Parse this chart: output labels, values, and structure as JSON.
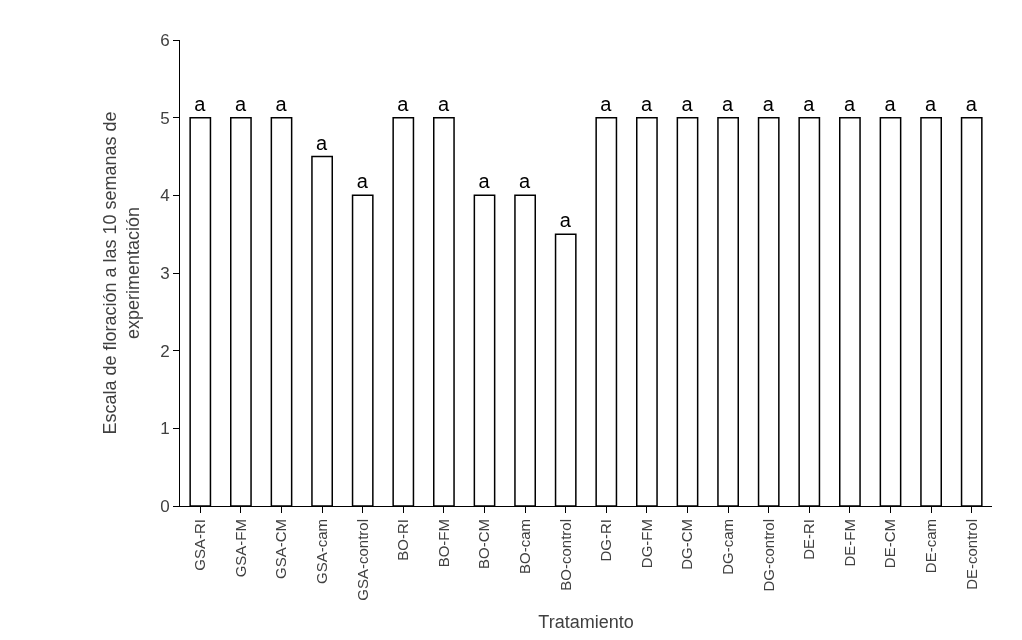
{
  "chart_data": {
    "type": "bar",
    "xlabel": "Tratamiento",
    "ylabel": "Escala de floración a las 10 semanas de experimentación",
    "categories": [
      "GSA-RI",
      "GSA-FM",
      "GSA-CM",
      "GSA-cam",
      "GSA-control",
      "BO-RI",
      "BO-FM",
      "BO-CM",
      "BO-cam",
      "BO-control",
      "DG-RI",
      "DG-FM",
      "DG-CM",
      "DG-cam",
      "DG-control",
      "DE-RI",
      "DE-FM",
      "DE-CM",
      "DE-cam",
      "DE-control"
    ],
    "values": [
      5,
      5,
      5,
      4.5,
      4,
      5,
      5,
      4,
      4,
      3.5,
      5,
      5,
      5,
      5,
      5,
      5,
      5,
      5,
      5,
      5
    ],
    "value_labels": [
      "a",
      "a",
      "a",
      "a",
      "a",
      "a",
      "a",
      "a",
      "a",
      "a",
      "a",
      "a",
      "a",
      "a",
      "a",
      "a",
      "a",
      "a",
      "a",
      "a"
    ],
    "color": "#ffffff",
    "ylim": [
      0,
      6
    ],
    "yticks": [
      0,
      1,
      2,
      3,
      4,
      5,
      6
    ]
  }
}
